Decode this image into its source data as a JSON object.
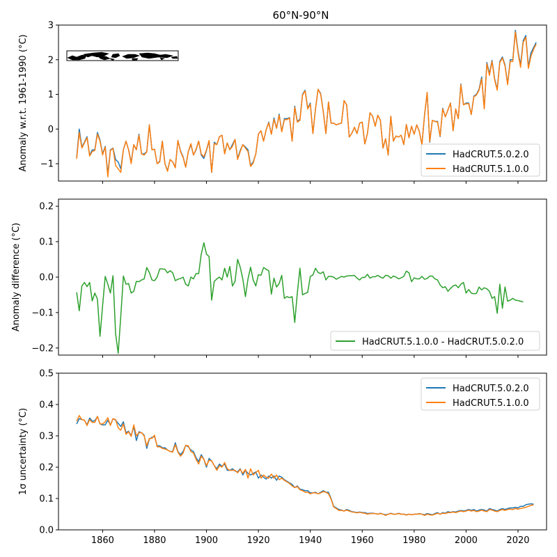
{
  "figure": {
    "title": "60°N-90°N"
  },
  "chart_data": [
    {
      "type": "line",
      "panel": "anomaly",
      "title": "60°N-90°N",
      "xlabel": "",
      "ylabel": "Anomaly w.r.t. 1961-1990 (°C)",
      "xlim": [
        1843,
        2031
      ],
      "ylim": [
        -1.5,
        3
      ],
      "xticks": [
        1860,
        1880,
        1900,
        1920,
        1940,
        1960,
        1980,
        2000,
        2020
      ],
      "xtick_labels_visible": false,
      "yticks": [
        -1,
        0,
        1,
        2,
        3
      ],
      "ytick_labels": [
        "−1",
        "0",
        "1",
        "2",
        "3"
      ],
      "legend": "lower-right",
      "grid": false,
      "inset": "region map thumbnail (60°N-90°N band)",
      "x_start": 1850,
      "series": [
        {
          "name": "HadCRUT.5.0.2.0",
          "color": "#1f77b4",
          "values": [
            -0.82,
            0.0,
            -0.52,
            -0.38,
            -0.22,
            -0.76,
            -0.6,
            -0.6,
            -0.1,
            -0.32,
            -0.72,
            -0.5,
            -1.3,
            -0.6,
            -0.55,
            -0.88,
            -0.95,
            -1.15,
            -0.6,
            -0.35,
            -0.6,
            -0.96,
            -0.45,
            -0.6,
            -0.15,
            -0.72,
            -0.72,
            -0.65,
            0.12,
            -0.6,
            -0.58,
            -1.0,
            -0.93,
            -0.35,
            -1.0,
            -1.2,
            -0.88,
            -0.95,
            -1.1,
            -0.33,
            -0.63,
            -0.8,
            -1.1,
            -0.65,
            -0.45,
            -0.75,
            -0.6,
            -0.35,
            -0.75,
            -0.85,
            -0.62,
            -0.35,
            -1.25,
            -0.38,
            -0.45,
            -0.22,
            -0.18,
            -0.7,
            -0.4,
            -0.6,
            -0.45,
            -0.3,
            -0.85,
            -0.62,
            -0.45,
            -0.52,
            -0.6,
            -1.05,
            -0.95,
            -0.72,
            -0.15,
            -0.05,
            -0.35,
            -0.02,
            0.2,
            -0.15,
            0.32,
            0.02,
            0.43,
            -0.07,
            0.3,
            0.3,
            0.33,
            -0.35,
            0.66,
            0.22,
            0.28,
            1.0,
            1.12,
            0.6,
            0.75,
            -0.13,
            0.58,
            1.15,
            1.02,
            0.5,
            -0.13,
            0.78,
            0.17,
            0.17,
            0.12,
            0.15,
            0.17,
            0.82,
            0.7,
            -0.23,
            -0.12,
            0.05,
            -0.13,
            0.17,
            0.2,
            -0.43,
            -0.13,
            0.47,
            0.37,
            0.08,
            0.4,
            0.25,
            -0.55,
            -0.28,
            -0.75,
            0.37,
            -0.35,
            -0.2,
            -0.23,
            -0.18,
            -0.45,
            0.13,
            -0.25,
            0.08,
            -0.15,
            0.12,
            -0.07,
            -0.45,
            0.4,
            1.05,
            -0.38,
            0.25,
            0.22,
            0.22,
            -0.22,
            0.6,
            0.35,
            0.55,
            0.75,
            -0.05,
            0.58,
            0.3,
            1.3,
            0.7,
            0.75,
            0.75,
            0.42,
            0.95,
            1.0,
            1.15,
            1.5,
            0.6,
            1.92,
            1.6,
            1.98,
            1.45,
            1.15,
            1.95,
            2.08,
            1.85,
            1.3,
            2.0,
            2.0,
            2.85,
            2.25,
            1.85,
            2.55,
            2.7,
            1.8,
            2.2,
            2.35,
            2.5
          ]
        },
        {
          "name": "HadCRUT.5.1.0.0",
          "color": "#ff7f0e",
          "values": [
            -0.86,
            -0.1,
            -0.55,
            -0.4,
            -0.25,
            -0.78,
            -0.65,
            -0.62,
            -0.15,
            -0.35,
            -0.75,
            -0.52,
            -1.38,
            -0.62,
            -0.56,
            -1.05,
            -1.15,
            -1.25,
            -0.6,
            -0.35,
            -0.6,
            -1.0,
            -0.45,
            -0.6,
            -0.18,
            -0.72,
            -0.75,
            -0.66,
            0.12,
            -0.6,
            -0.58,
            -1.0,
            -0.95,
            -0.35,
            -1.0,
            -1.22,
            -0.88,
            -0.95,
            -1.12,
            -0.33,
            -0.65,
            -0.82,
            -1.1,
            -0.65,
            -0.42,
            -0.75,
            -0.58,
            -0.35,
            -0.72,
            -0.8,
            -0.6,
            -0.33,
            -1.25,
            -0.42,
            -0.45,
            -0.22,
            -0.18,
            -0.72,
            -0.4,
            -0.6,
            -0.5,
            -0.3,
            -0.88,
            -0.65,
            -0.45,
            -0.55,
            -0.65,
            -1.08,
            -0.98,
            -0.72,
            -0.15,
            -0.05,
            -0.35,
            -0.02,
            0.18,
            -0.15,
            0.28,
            0.02,
            0.4,
            -0.08,
            0.27,
            0.27,
            0.32,
            -0.35,
            0.63,
            0.2,
            0.25,
            0.98,
            1.1,
            0.58,
            0.72,
            -0.13,
            0.58,
            1.15,
            1.0,
            0.5,
            -0.13,
            0.78,
            0.17,
            0.17,
            0.12,
            0.15,
            0.17,
            0.82,
            0.7,
            -0.23,
            -0.12,
            0.05,
            -0.13,
            0.17,
            0.2,
            -0.43,
            -0.13,
            0.47,
            0.37,
            0.08,
            0.4,
            0.25,
            -0.55,
            -0.28,
            -0.75,
            0.37,
            -0.35,
            -0.2,
            -0.23,
            -0.18,
            -0.45,
            0.13,
            -0.25,
            0.08,
            -0.15,
            0.12,
            -0.07,
            -0.45,
            0.4,
            1.06,
            -0.36,
            0.25,
            0.22,
            0.2,
            -0.2,
            0.58,
            0.35,
            0.55,
            0.75,
            -0.05,
            0.58,
            0.3,
            1.28,
            0.7,
            0.73,
            0.73,
            0.42,
            0.93,
            0.98,
            1.12,
            1.45,
            0.58,
            1.88,
            1.55,
            1.95,
            1.42,
            1.12,
            1.92,
            2.05,
            1.82,
            1.28,
            1.95,
            1.95,
            2.8,
            2.2,
            1.78,
            2.5,
            2.65,
            1.75,
            2.1,
            2.3,
            2.45
          ]
        }
      ]
    },
    {
      "type": "line",
      "panel": "difference",
      "xlabel": "",
      "ylabel": "Anomaly difference (°C)",
      "xlim": [
        1843,
        2031
      ],
      "ylim": [
        -0.22,
        0.22
      ],
      "xticks": [
        1860,
        1880,
        1900,
        1920,
        1940,
        1960,
        1980,
        2000,
        2020
      ],
      "xtick_labels_visible": false,
      "yticks": [
        -0.2,
        -0.1,
        0.0,
        0.1,
        0.2
      ],
      "ytick_labels": [
        "−0.2",
        "−0.1",
        "0.0",
        "0.1",
        "0.2"
      ],
      "legend": "lower-right",
      "grid": false,
      "x_start": 1850,
      "series": [
        {
          "name": "HadCRUT.5.1.0.0 - HadCRUT.5.0.2.0",
          "color": "#2ca02c",
          "values": [
            -0.043,
            -0.095,
            -0.025,
            -0.015,
            -0.027,
            -0.015,
            -0.067,
            -0.045,
            -0.062,
            -0.167,
            -0.08,
            0.002,
            -0.02,
            -0.045,
            0.004,
            -0.16,
            -0.215,
            -0.11,
            0.003,
            -0.02,
            -0.018,
            -0.045,
            -0.04,
            -0.012,
            -0.013,
            -0.008,
            -0.005,
            0.027,
            0.013,
            -0.008,
            -0.01,
            0.0,
            0.023,
            0.023,
            0.022,
            0.012,
            0.018,
            0.012,
            -0.01,
            -0.006,
            -0.004,
            0.0,
            -0.02,
            -0.025,
            0.0,
            -0.005,
            0.01,
            0.01,
            0.065,
            0.097,
            0.065,
            0.058,
            -0.065,
            -0.012,
            -0.005,
            0.0,
            -0.008,
            0.025,
            0.0,
            0.03,
            -0.025,
            -0.012,
            0.05,
            0.028,
            -0.005,
            -0.055,
            -0.005,
            0.028,
            -0.008,
            -0.025,
            0.007,
            0.005,
            0.027,
            0.022,
            0.018,
            -0.048,
            -0.003,
            -0.028,
            -0.018,
            0.005,
            -0.06,
            -0.055,
            -0.058,
            -0.055,
            -0.128,
            -0.045,
            0.025,
            -0.05,
            -0.046,
            -0.043,
            0.002,
            0.006,
            0.025,
            0.013,
            0.01,
            0.015,
            -0.008,
            0.002,
            0.002,
            0.0,
            -0.006,
            -0.002,
            0.002,
            0.0,
            0.003,
            0.004,
            0.004,
            0.005,
            -0.003,
            -0.008,
            -0.001,
            -0.001,
            0.008,
            -0.003,
            0.001,
            0.001,
            0.005,
            0.0,
            -0.003,
            0.005,
            0.004,
            -0.003,
            0.003,
            0.0,
            -0.005,
            -0.002,
            0.002,
            0.017,
            0.012,
            -0.013,
            -0.002,
            -0.005,
            -0.005,
            0.002,
            -0.006,
            -0.004,
            0.003,
            0.003,
            -0.005,
            -0.008,
            -0.022,
            -0.03,
            -0.027,
            -0.04,
            -0.032,
            -0.025,
            -0.022,
            -0.03,
            -0.02,
            -0.015,
            -0.045,
            -0.035,
            -0.045,
            -0.047,
            -0.046,
            -0.028,
            -0.036,
            -0.03,
            -0.033,
            -0.04,
            -0.06,
            -0.055,
            -0.102,
            -0.02,
            -0.088,
            -0.028,
            -0.068,
            -0.065,
            -0.06,
            -0.065,
            -0.066,
            -0.068,
            -0.07
          ]
        }
      ]
    },
    {
      "type": "line",
      "panel": "uncertainty",
      "xlabel": "",
      "ylabel": "1σ uncertainty (°C)",
      "xlim": [
        1843,
        2031
      ],
      "ylim": [
        0.0,
        0.5
      ],
      "xticks": [
        1860,
        1880,
        1900,
        1920,
        1940,
        1960,
        1980,
        2000,
        2020
      ],
      "xtick_labels": [
        "1860",
        "1880",
        "1900",
        "1920",
        "1940",
        "1960",
        "1980",
        "2000",
        "2020"
      ],
      "yticks": [
        0.0,
        0.1,
        0.2,
        0.3,
        0.4,
        0.5
      ],
      "ytick_labels": [
        "0.0",
        "0.1",
        "0.2",
        "0.3",
        "0.4",
        "0.5"
      ],
      "legend": "upper-right",
      "grid": false,
      "x_start": 1850,
      "series": [
        {
          "name": "HadCRUT.5.0.2.0",
          "color": "#1f77b4",
          "values": [
            0.338,
            0.355,
            0.352,
            0.35,
            0.335,
            0.357,
            0.347,
            0.348,
            0.362,
            0.338,
            0.335,
            0.335,
            0.35,
            0.335,
            0.355,
            0.35,
            0.34,
            0.33,
            0.345,
            0.31,
            0.315,
            0.3,
            0.33,
            0.285,
            0.313,
            0.31,
            0.302,
            0.26,
            0.29,
            0.295,
            0.298,
            0.268,
            0.268,
            0.262,
            0.262,
            0.255,
            0.25,
            0.25,
            0.278,
            0.25,
            0.24,
            0.25,
            0.27,
            0.265,
            0.255,
            0.25,
            0.23,
            0.218,
            0.24,
            0.225,
            0.2,
            0.228,
            0.22,
            0.205,
            0.195,
            0.21,
            0.203,
            0.21,
            0.19,
            0.19,
            0.195,
            0.188,
            0.185,
            0.195,
            0.175,
            0.19,
            0.18,
            0.175,
            0.18,
            0.185,
            0.165,
            0.175,
            0.168,
            0.162,
            0.172,
            0.165,
            0.172,
            0.158,
            0.172,
            0.168,
            0.16,
            0.155,
            0.15,
            0.145,
            0.135,
            0.14,
            0.13,
            0.128,
            0.125,
            0.125,
            0.118,
            0.118,
            0.12,
            0.115,
            0.12,
            0.125,
            0.12,
            0.12,
            0.1,
            0.075,
            0.07,
            0.065,
            0.063,
            0.06,
            0.065,
            0.062,
            0.058,
            0.057,
            0.055,
            0.057,
            0.055,
            0.055,
            0.052,
            0.053,
            0.053,
            0.052,
            0.05,
            0.053,
            0.05,
            0.048,
            0.05,
            0.053,
            0.05,
            0.05,
            0.053,
            0.05,
            0.05,
            0.048,
            0.05,
            0.048,
            0.05,
            0.05,
            0.052,
            0.05,
            0.048,
            0.052,
            0.05,
            0.048,
            0.052,
            0.055,
            0.05,
            0.055,
            0.053,
            0.058,
            0.056,
            0.058,
            0.057,
            0.06,
            0.062,
            0.06,
            0.062,
            0.065,
            0.062,
            0.065,
            0.06,
            0.063,
            0.065,
            0.063,
            0.06,
            0.068,
            0.065,
            0.063,
            0.06,
            0.065,
            0.068,
            0.065,
            0.068,
            0.07,
            0.07,
            0.072,
            0.07,
            0.075,
            0.075,
            0.08,
            0.082,
            0.083,
            0.082
          ]
        },
        {
          "name": "HadCRUT.5.1.0.0",
          "color": "#ff7f0e",
          "values": [
            0.347,
            0.365,
            0.352,
            0.35,
            0.333,
            0.352,
            0.343,
            0.343,
            0.362,
            0.338,
            0.338,
            0.345,
            0.358,
            0.333,
            0.355,
            0.352,
            0.325,
            0.318,
            0.338,
            0.305,
            0.313,
            0.298,
            0.335,
            0.3,
            0.31,
            0.31,
            0.3,
            0.268,
            0.292,
            0.292,
            0.302,
            0.265,
            0.265,
            0.26,
            0.258,
            0.255,
            0.25,
            0.248,
            0.272,
            0.248,
            0.235,
            0.245,
            0.27,
            0.268,
            0.25,
            0.245,
            0.225,
            0.21,
            0.235,
            0.225,
            0.205,
            0.222,
            0.22,
            0.205,
            0.19,
            0.205,
            0.2,
            0.215,
            0.195,
            0.19,
            0.19,
            0.19,
            0.182,
            0.193,
            0.18,
            0.193,
            0.165,
            0.195,
            0.175,
            0.183,
            0.19,
            0.165,
            0.175,
            0.168,
            0.165,
            0.178,
            0.165,
            0.175,
            0.16,
            0.165,
            0.158,
            0.153,
            0.148,
            0.14,
            0.135,
            0.138,
            0.128,
            0.125,
            0.12,
            0.12,
            0.115,
            0.118,
            0.118,
            0.115,
            0.118,
            0.122,
            0.12,
            0.115,
            0.098,
            0.073,
            0.068,
            0.062,
            0.062,
            0.06,
            0.063,
            0.06,
            0.057,
            0.056,
            0.054,
            0.056,
            0.054,
            0.053,
            0.05,
            0.052,
            0.052,
            0.052,
            0.05,
            0.052,
            0.05,
            0.046,
            0.05,
            0.052,
            0.05,
            0.05,
            0.052,
            0.05,
            0.05,
            0.047,
            0.05,
            0.048,
            0.05,
            0.05,
            0.051,
            0.05,
            0.046,
            0.05,
            0.048,
            0.047,
            0.05,
            0.053,
            0.05,
            0.053,
            0.052,
            0.055,
            0.055,
            0.057,
            0.055,
            0.058,
            0.06,
            0.058,
            0.06,
            0.063,
            0.06,
            0.062,
            0.058,
            0.06,
            0.063,
            0.06,
            0.058,
            0.065,
            0.063,
            0.06,
            0.058,
            0.062,
            0.065,
            0.062,
            0.065,
            0.066,
            0.065,
            0.068,
            0.066,
            0.068,
            0.07,
            0.072,
            0.075,
            0.078,
            0.08
          ]
        }
      ]
    }
  ]
}
